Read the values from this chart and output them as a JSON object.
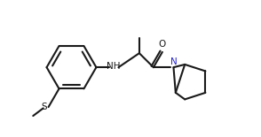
{
  "bg_color": "#ffffff",
  "line_color": "#1a1a1a",
  "N_color": "#2626cc",
  "line_width": 1.5,
  "font_size": 7.5,
  "figsize": [
    2.94,
    1.55
  ],
  "dpi": 100,
  "xlim": [
    -0.5,
    10.5
  ],
  "ylim": [
    0.2,
    5.8
  ]
}
